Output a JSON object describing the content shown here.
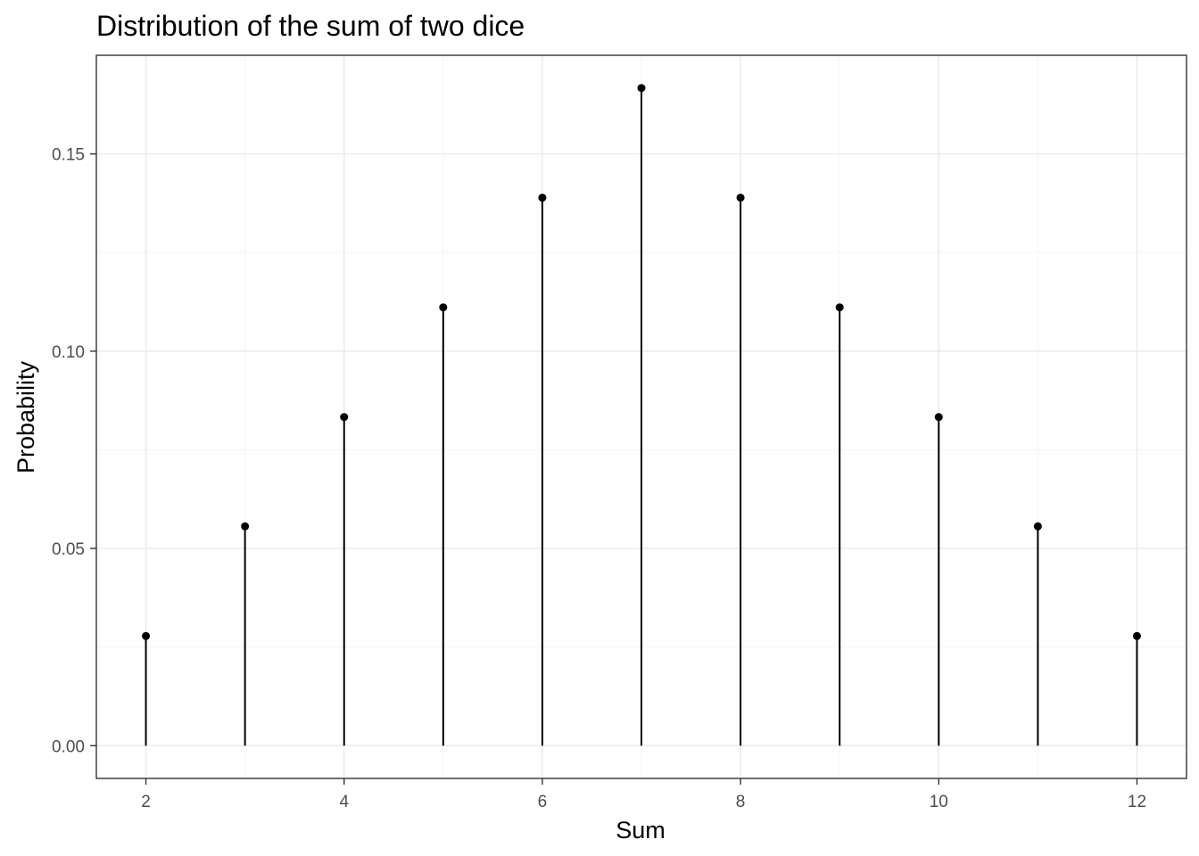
{
  "chart_data": {
    "type": "lollipop",
    "title": "Distribution of the sum of two dice",
    "xlabel": "Sum",
    "ylabel": "Probability",
    "x": [
      2,
      3,
      4,
      5,
      6,
      7,
      8,
      9,
      10,
      11,
      12
    ],
    "y": [
      0.0278,
      0.0556,
      0.0833,
      0.1111,
      0.1389,
      0.1667,
      0.1389,
      0.1111,
      0.0833,
      0.0556,
      0.0278
    ],
    "xlim": [
      1.5,
      12.5
    ],
    "ylim": [
      -0.0083,
      0.175
    ],
    "x_ticks": [
      2,
      4,
      6,
      8,
      10,
      12
    ],
    "x_tick_labels": [
      "2",
      "4",
      "6",
      "8",
      "10",
      "12"
    ],
    "y_ticks": [
      0,
      0.05,
      0.1,
      0.15
    ],
    "y_tick_labels": [
      "0.00",
      "0.05",
      "0.10",
      "0.15"
    ],
    "grid": true,
    "legend": "none",
    "colors": {
      "mark": "#000000",
      "panel_border": "#333333",
      "grid_major": "#ebebeb",
      "grid_minor": "#f4f4f4",
      "tick_label": "#4d4d4d"
    }
  }
}
